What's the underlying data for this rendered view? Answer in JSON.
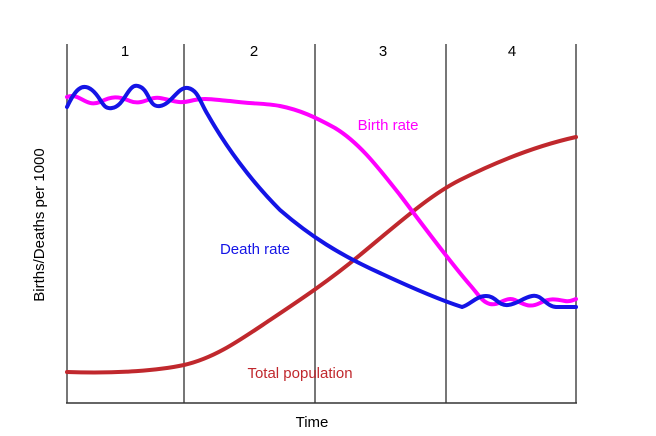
{
  "stages": [
    "1",
    "2",
    "3",
    "4"
  ],
  "curves": {
    "birth_rate": "Birth rate",
    "death_rate": "Death rate",
    "total_population": "Total population"
  },
  "axes": {
    "x_label": "Time",
    "y_label": "Births/Deaths per 1000"
  }
}
